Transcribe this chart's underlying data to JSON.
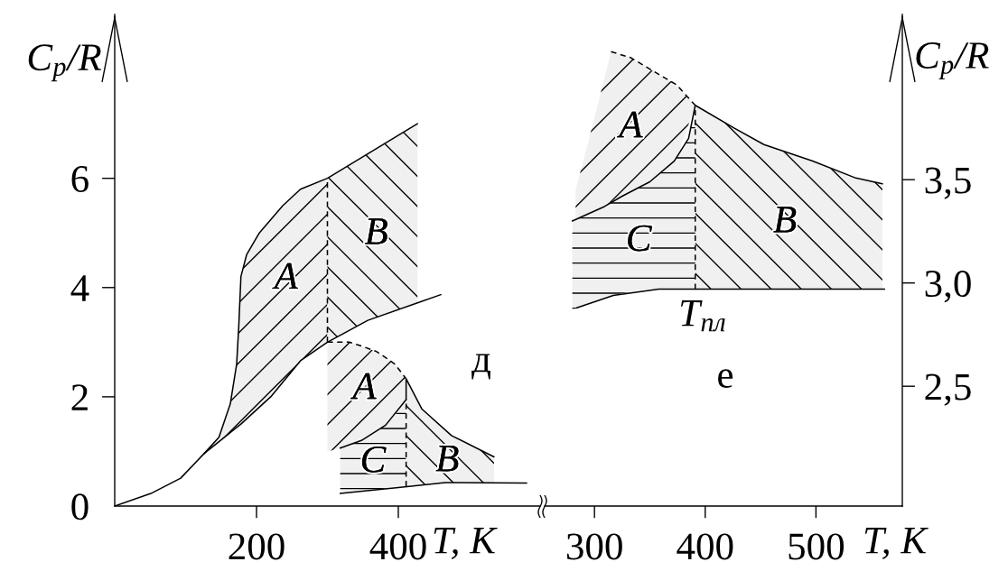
{
  "chart_data": [
    {
      "type": "line",
      "title": "д",
      "xlabel": "T, К",
      "ylabel": "C$_{p}$/R",
      "xlim": [
        0,
        600
      ],
      "xticks": [
        200,
        400
      ],
      "ylim": [
        0,
        9
      ],
      "yticks": [
        0,
        2,
        4,
        6
      ],
      "series": [
        {
          "color": "#000000",
          "x": [
            0,
            51,
            93,
            126,
            147,
            163,
            172,
            175,
            178,
            186,
            204,
            237,
            262,
            300,
            427
          ],
          "values": [
            0,
            0.23,
            0.51,
            0.96,
            1.26,
            1.87,
            2.6,
            3.3,
            4.2,
            4.6,
            5.0,
            5.5,
            5.8,
            6.0,
            7.0
          ],
          "lower": [
            null,
            null,
            null,
            0.96,
            1.18,
            1.34,
            1.44,
            1.47,
            1.5,
            1.6,
            1.81,
            2.27,
            2.66,
            3.0,
            null
          ],
          "upper": [
            null,
            null,
            null,
            0.96,
            1.26,
            1.87,
            2.6,
            3.3,
            4.2,
            4.6,
            5.0,
            5.5,
            5.8,
            6.0,
            null
          ]
        },
        {
          "color": "#000000",
          "x": [
            126,
            178,
            220,
            262,
            300,
            357,
            427,
            460
          ],
          "values": [
            0.96,
            1.5,
            2.0,
            2.66,
            3.0,
            3.4,
            3.72,
            3.87
          ],
          "lower": [
            null,
            null,
            null,
            null,
            3.0,
            3.4,
            3.72,
            null
          ],
          "upper": [
            null,
            null,
            null,
            null,
            6.0,
            6.45,
            7.0,
            null
          ]
        },
        {
          "color": "#000000",
          "x": [
            318,
            348,
            382,
            411
          ],
          "values": [
            1.06,
            1.2,
            1.48,
            1.95
          ],
          "lower": [
            0.23,
            0.27,
            0.32,
            0.36
          ],
          "upper": [
            1.06,
            1.2,
            1.48,
            1.95
          ]
        },
        {
          "color": "#000000",
          "line_style": "dashed",
          "x": [
            300,
            318,
            331,
            348,
            369,
            382,
            395,
            411
          ],
          "values": [
            3.0,
            3.0,
            3.0,
            2.93,
            2.83,
            2.72,
            2.6,
            2.33
          ],
          "lower": [
            1.0,
            1.06,
            1.12,
            1.2,
            1.37,
            1.48,
            1.66,
            1.95
          ],
          "upper": [
            3.0,
            3.0,
            3.0,
            2.93,
            2.83,
            2.72,
            2.6,
            2.33
          ]
        },
        {
          "color": "#000000",
          "x": [
            411,
            411,
            433,
            475,
            535
          ],
          "values": [
            1.95,
            2.33,
            1.78,
            1.29,
            0.9
          ],
          "lower": [
            0.36,
            0.36,
            0.39,
            0.43,
            0.42
          ],
          "upper": [
            1.95,
            2.33,
            1.78,
            1.29,
            0.9
          ]
        },
        {
          "color": "#000000",
          "line_style": "dashed",
          "x": [
            300,
            300
          ],
          "values": [
            3.0,
            6.0
          ]
        },
        {
          "color": "#000000",
          "line_style": "dashed",
          "x": [
            411,
            411
          ],
          "values": [
            0.36,
            1.95
          ]
        },
        {
          "color": "#000000",
          "x": [
            318,
            400,
            466,
            581
          ],
          "values": [
            0.23,
            0.34,
            0.43,
            0.42
          ]
        }
      ],
      "annotations": [
        "A",
        "B",
        "A",
        "C",
        "B"
      ]
    },
    {
      "type": "line",
      "title": "е",
      "xlabel": "T, К",
      "y2label": "C$_{p}$/R",
      "xlim": [
        255,
        578
      ],
      "xticks": [
        300,
        400,
        500
      ],
      "y2lim": [
        1.92,
        4.3
      ],
      "y2ticks": [
        {
          "value": 2.5,
          "label": "2,5"
        },
        {
          "value": 3.0,
          "label": "3,0"
        },
        {
          "value": 3.5,
          "label": "3,5"
        }
      ],
      "series": [
        {
          "axis": "y2",
          "color": "#000000",
          "line_style": "dashed",
          "x": [
            283,
            300,
            315,
            333,
            358,
            374,
            391
          ],
          "values": [
            null,
            null,
            4.12,
            4.09,
            4.01,
            3.96,
            3.86
          ],
          "lower": [
            3.31,
            3.35,
            3.39,
            3.44,
            3.52,
            3.6,
            3.86
          ],
          "upper": [
            3.45,
            3.8,
            4.12,
            4.09,
            4.01,
            3.96,
            3.86
          ]
        },
        {
          "axis": "y2",
          "color": "#000000",
          "x": [
            391,
            426,
            453,
            497,
            535,
            560
          ],
          "values": [
            3.86,
            3.75,
            3.67,
            3.59,
            3.51,
            3.48
          ],
          "lower": [
            2.97,
            2.97,
            2.97,
            2.97,
            2.97,
            2.97
          ],
          "upper": [
            3.86,
            3.75,
            3.67,
            3.59,
            3.51,
            3.48
          ]
        },
        {
          "axis": "y2",
          "color": "#000000",
          "x": [
            280,
            309,
            325,
            350,
            372,
            385,
            391
          ],
          "values": [
            3.3,
            3.37,
            3.42,
            3.49,
            3.59,
            3.7,
            3.86
          ],
          "lower": [
            2.87,
            2.93,
            2.95,
            2.97,
            2.97,
            2.97,
            2.97
          ],
          "upper": [
            3.3,
            3.37,
            3.42,
            3.49,
            3.59,
            3.7,
            3.86
          ]
        },
        {
          "axis": "y2",
          "color": "#000000",
          "x": [
            284,
            317,
            358,
            391,
            562
          ],
          "values": [
            2.88,
            2.94,
            2.97,
            2.97,
            2.97
          ]
        },
        {
          "axis": "y2",
          "name": "T$_{пл}$",
          "color": "#000000",
          "line_style": "dashed",
          "x": [
            391,
            391
          ],
          "values": [
            2.97,
            3.86
          ]
        }
      ],
      "annotations": [
        "A",
        "C",
        "B"
      ]
    }
  ]
}
